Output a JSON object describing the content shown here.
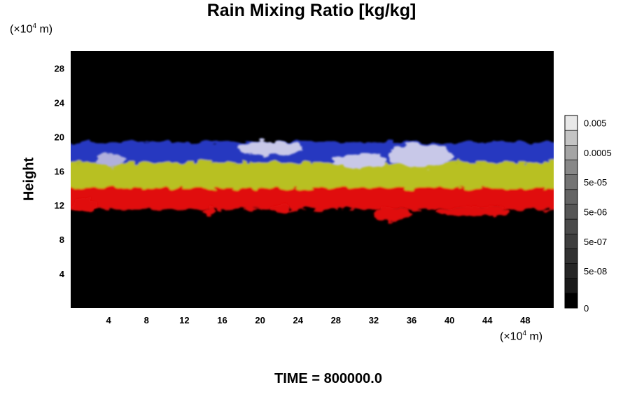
{
  "chart_data": {
    "type": "heatmap",
    "title": "Rain Mixing Ratio [kg/kg]",
    "ylabel": "Height",
    "xlabel": "",
    "x_unit": "(×10⁴ m)",
    "y_unit": "(×10⁴ m)",
    "x_unit_base": "(×10",
    "x_unit_exp": "4",
    "x_unit_suffix": " m)",
    "y_unit_base": "(×10",
    "y_unit_exp": "4",
    "y_unit_suffix": " m)",
    "xlim": [
      0,
      51
    ],
    "ylim": [
      0,
      30
    ],
    "x_ticks": [
      4,
      8,
      12,
      16,
      20,
      24,
      28,
      32,
      36,
      40,
      44,
      48
    ],
    "y_ticks": [
      4,
      8,
      12,
      16,
      20,
      24,
      28
    ],
    "background_color": "#000000",
    "bands": [
      {
        "color": "#e01010",
        "bottom": 11.5,
        "top": 14.2
      },
      {
        "color": "#b8c020",
        "bottom": 14.0,
        "top": 17.2
      },
      {
        "color": "#2838c0",
        "bottom": 17.0,
        "top": 19.4
      }
    ],
    "patches": [
      {
        "color": "#c8c8e8",
        "x": 37,
        "y": 17.8,
        "rx": 3.5,
        "ry": 1.4
      },
      {
        "color": "#c8c8e8",
        "x": 21,
        "y": 18.6,
        "rx": 3.5,
        "ry": 0.9
      },
      {
        "color": "#c8c8e8",
        "x": 30.5,
        "y": 17.2,
        "rx": 2.8,
        "ry": 0.9
      },
      {
        "color": "#b0b0dc",
        "x": 4.2,
        "y": 17.3,
        "rx": 1.5,
        "ry": 0.9
      },
      {
        "color": "#e01010",
        "x": 42.5,
        "y": 11.3,
        "rx": 3.8,
        "ry": 0.6
      },
      {
        "color": "#e01010",
        "x": 22,
        "y": 11.5,
        "rx": 1.0,
        "ry": 0.6
      },
      {
        "color": "#e01010",
        "x": 14.7,
        "y": 11.2,
        "rx": 0.6,
        "ry": 0.5
      },
      {
        "color": "#e01010",
        "x": 34,
        "y": 11.0,
        "rx": 2.0,
        "ry": 0.9
      },
      {
        "color": "#e01010",
        "x": 1.5,
        "y": 12.0,
        "rx": 1.3,
        "ry": 0.8
      }
    ],
    "colorbar": {
      "labels": [
        {
          "text": "0.005",
          "value": 0.005
        },
        {
          "text": "0.0005",
          "value": 0.0005
        },
        {
          "text": "5e-05",
          "value": 5e-05
        },
        {
          "text": "5e-06",
          "value": 5e-06
        },
        {
          "text": "5e-07",
          "value": 5e-07
        },
        {
          "text": "5e-08",
          "value": 5e-08
        },
        {
          "text": "0",
          "value": 0
        }
      ],
      "levels": 13,
      "colors": [
        "#000000",
        "#1a1a1a",
        "#262626",
        "#323232",
        "#3e3e3e",
        "#4a4a4a",
        "#565656",
        "#646464",
        "#747474",
        "#888888",
        "#a4a4a4",
        "#c4c4c4",
        "#e8e8e8"
      ]
    }
  },
  "footer": {
    "time_label": "TIME = 800000.0"
  }
}
